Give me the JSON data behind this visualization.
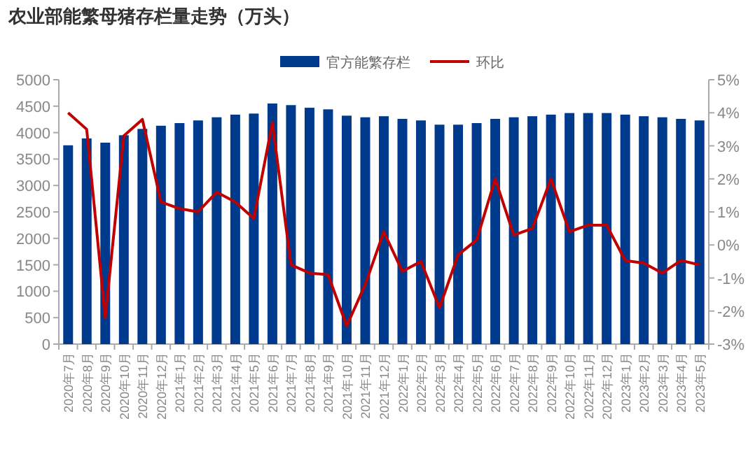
{
  "chart_data": {
    "type": "bar",
    "title": "农业部能繁母猪存栏量走势（万头）",
    "categories": [
      "2020年7月",
      "2020年8月",
      "2020年9月",
      "2020年10月",
      "2020年11月",
      "2020年12月",
      "2021年1月",
      "2021年2月",
      "2021年3月",
      "2021年4月",
      "2021年5月",
      "2021年6月",
      "2021年7月",
      "2021年8月",
      "2021年9月",
      "2021年10月",
      "2021年11月",
      "2021年12月",
      "2022年1月",
      "2022年2月",
      "2022年3月",
      "2022年4月",
      "2022年5月",
      "2022年6月",
      "2022年7月",
      "2022年8月",
      "2022年9月",
      "2022年10月",
      "2022年11月",
      "2022年12月",
      "2023年1月",
      "2023年2月",
      "2023年3月",
      "2023年4月",
      "2023年5月"
    ],
    "series": [
      {
        "name": "官方能繁存栏",
        "color": "#003a8c",
        "values": [
          3760,
          3890,
          3810,
          3950,
          4070,
          4130,
          4180,
          4230,
          4290,
          4340,
          4360,
          4550,
          4520,
          4470,
          4440,
          4320,
          4290,
          4310,
          4260,
          4230,
          4150,
          4150,
          4180,
          4260,
          4290,
          4310,
          4340,
          4370,
          4370,
          4370,
          4340,
          4310,
          4290,
          4260,
          4230
        ]
      },
      {
        "name": "环比",
        "type": "line",
        "axis": "y2",
        "color": "#c00000",
        "values": [
          4.0,
          3.5,
          -2.2,
          3.3,
          3.8,
          1.3,
          1.1,
          1.0,
          1.6,
          1.3,
          0.8,
          3.7,
          -0.6,
          -0.85,
          -0.9,
          -2.45,
          -1.2,
          0.4,
          -0.8,
          -0.5,
          -1.9,
          -0.3,
          0.15,
          2.0,
          0.3,
          0.5,
          2.0,
          0.4,
          0.6,
          0.6,
          -0.47,
          -0.55,
          -0.85,
          -0.47,
          -0.6
        ]
      }
    ],
    "ylim": [
      0,
      5000
    ],
    "yticks": [
      0,
      500,
      1000,
      1500,
      2000,
      2500,
      3000,
      3500,
      4000,
      4500,
      5000
    ],
    "y2lim": [
      -3,
      5
    ],
    "y2ticks": [
      {
        "value": -3,
        "label": "-3%"
      },
      {
        "value": -2,
        "label": "-2%"
      },
      {
        "value": -1,
        "label": "-1%"
      },
      {
        "value": 0,
        "label": "0%"
      },
      {
        "value": 1,
        "label": "1%"
      },
      {
        "value": 2,
        "label": "2%"
      },
      {
        "value": 3,
        "label": "3%"
      },
      {
        "value": 4,
        "label": "4%"
      },
      {
        "value": 5,
        "label": "5%"
      }
    ],
    "grid": false,
    "legend": "top"
  }
}
